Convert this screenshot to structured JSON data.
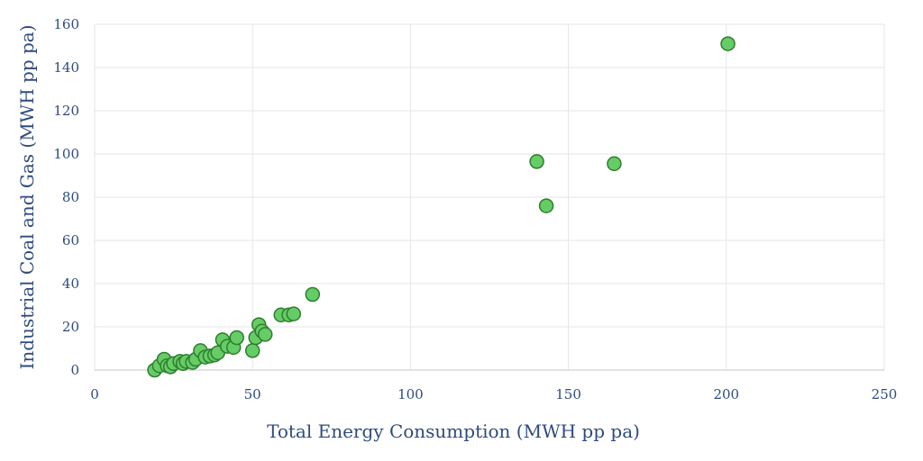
{
  "chart_data": {
    "type": "scatter",
    "xlabel": "Total Energy Consumption (MWH pp pa)",
    "ylabel": "Industrial Coal and Gas (MWH pp pa)",
    "xlim": [
      0,
      250
    ],
    "ylim": [
      0,
      160
    ],
    "xticks": [
      0,
      50,
      100,
      150,
      200,
      250
    ],
    "yticks": [
      0,
      20,
      40,
      60,
      80,
      100,
      120,
      140,
      160
    ],
    "grid": true,
    "legend": "none",
    "marker_fill": "#66cc66",
    "marker_stroke": "#2e7d2e",
    "points": [
      {
        "x": 19,
        "y": 0
      },
      {
        "x": 20.5,
        "y": 2
      },
      {
        "x": 22,
        "y": 5
      },
      {
        "x": 23,
        "y": 2
      },
      {
        "x": 24,
        "y": 1.5
      },
      {
        "x": 25,
        "y": 3
      },
      {
        "x": 27,
        "y": 4
      },
      {
        "x": 28,
        "y": 3
      },
      {
        "x": 29,
        "y": 4
      },
      {
        "x": 31,
        "y": 3.5
      },
      {
        "x": 32,
        "y": 5
      },
      {
        "x": 33.5,
        "y": 9
      },
      {
        "x": 35,
        "y": 6
      },
      {
        "x": 36.5,
        "y": 6.5
      },
      {
        "x": 38,
        "y": 7
      },
      {
        "x": 39,
        "y": 8
      },
      {
        "x": 40.5,
        "y": 14
      },
      {
        "x": 42,
        "y": 11
      },
      {
        "x": 44,
        "y": 10.5
      },
      {
        "x": 45,
        "y": 15
      },
      {
        "x": 50,
        "y": 9
      },
      {
        "x": 51,
        "y": 15
      },
      {
        "x": 52,
        "y": 21
      },
      {
        "x": 53,
        "y": 18
      },
      {
        "x": 54,
        "y": 16.5
      },
      {
        "x": 59,
        "y": 25.5
      },
      {
        "x": 61.5,
        "y": 25.5
      },
      {
        "x": 63,
        "y": 26
      },
      {
        "x": 69,
        "y": 35
      },
      {
        "x": 140,
        "y": 96.5
      },
      {
        "x": 143,
        "y": 76
      },
      {
        "x": 164.5,
        "y": 95.5
      },
      {
        "x": 200.5,
        "y": 151
      }
    ]
  }
}
